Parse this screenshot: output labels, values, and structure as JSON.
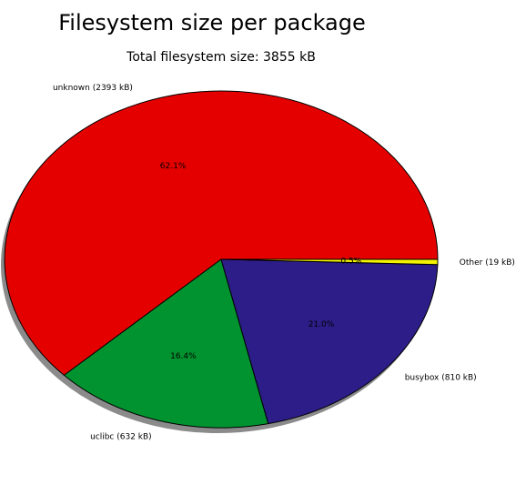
{
  "chart_data": {
    "type": "pie",
    "title": "Filesystem size per package",
    "subtitle": "Total filesystem size: 3855 kB",
    "slices": [
      {
        "label": "unknown (2393 kB)",
        "value": 2393,
        "percent_label": "62.1%",
        "percent": 62.1,
        "color": "#e50000"
      },
      {
        "label": "uclibc (632 kB)",
        "value": 632,
        "percent_label": "16.4%",
        "percent": 16.4,
        "color": "#00932f"
      },
      {
        "label": "busybox (810 kB)",
        "value": 810,
        "percent_label": "21.0%",
        "percent": 21.0,
        "color": "#2c1d88"
      },
      {
        "label": "Other (19 kB)",
        "value": 19,
        "percent_label": "0.5%",
        "percent": 0.5,
        "color": "#f2f200"
      }
    ],
    "shadow": true,
    "start_angle_deg": 0,
    "direction": "counterclockwise"
  }
}
